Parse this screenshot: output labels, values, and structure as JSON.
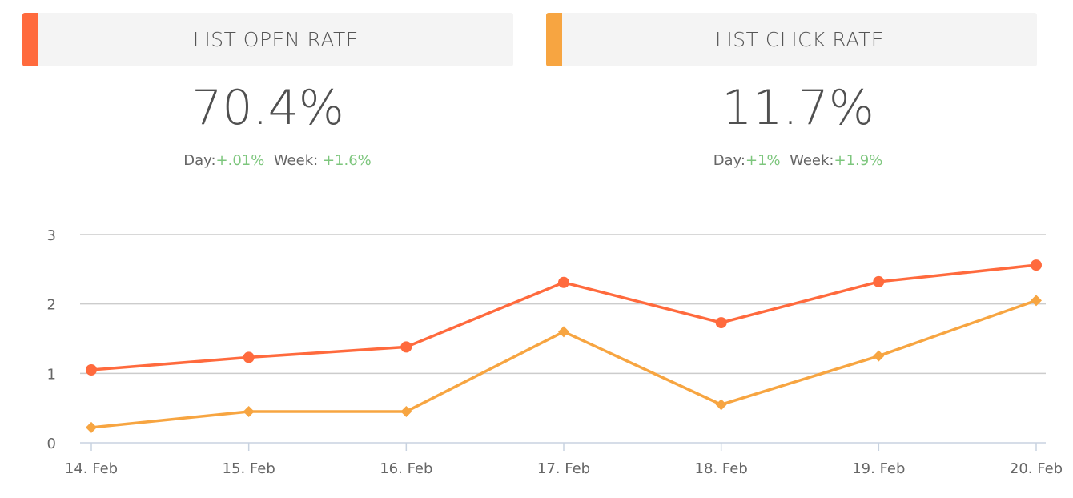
{
  "cards": [
    {
      "title": "LIST OPEN RATE",
      "value": "70.4%",
      "day_label": "Day:",
      "day": "+.01%",
      "week_label": "Week:",
      "week": "+1.6%",
      "color": "#ff6a3d"
    },
    {
      "title": "LIST CLICK RATE",
      "value": "11.7%",
      "day_label": "Day:",
      "day": "+1%",
      "week_label": "Week:",
      "week": "+1.9%",
      "color": "#f7a541"
    }
  ],
  "chart_data": {
    "type": "line",
    "categories": [
      "14. Feb",
      "15. Feb",
      "16. Feb",
      "17. Feb",
      "18. Feb",
      "19. Feb",
      "20. Feb"
    ],
    "yticks": [
      "0",
      "1",
      "2",
      "3"
    ],
    "ylim": [
      0,
      3
    ],
    "grid": true,
    "series": [
      {
        "values": [
          1.05,
          1.23,
          1.38,
          2.31,
          1.73,
          2.32,
          2.56
        ],
        "color": "#ff6a3d",
        "marker": "circle"
      },
      {
        "values": [
          0.22,
          0.45,
          0.45,
          1.6,
          0.55,
          1.25,
          2.05
        ],
        "color": "#f7a541",
        "marker": "diamond"
      }
    ]
  }
}
